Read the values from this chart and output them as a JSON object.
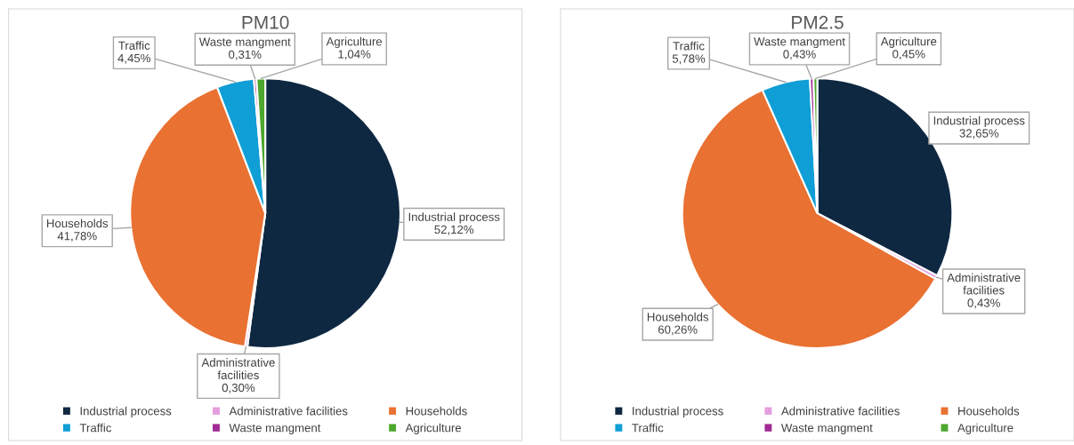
{
  "chart_data": [
    {
      "type": "pie",
      "title": "PM10",
      "categories": [
        "Industrial process",
        "Administrative facilities",
        "Households",
        "Traffic",
        "Waste mangment",
        "Agriculture"
      ],
      "values": [
        52.12,
        0.3,
        41.78,
        4.45,
        0.31,
        1.04
      ],
      "value_labels": [
        "52,12%",
        "0,30%",
        "41,78%",
        "4,45%",
        "0,31%",
        "1,04%"
      ],
      "colors": [
        "#0e2841",
        "#e49edd",
        "#e97132",
        "#0f9ed5",
        "#a02b93",
        "#4ea72e"
      ],
      "legend": "bottom"
    },
    {
      "type": "pie",
      "title": "PM2.5",
      "categories": [
        "Industrial process",
        "Administrative facilities",
        "Households",
        "Traffic",
        "Waste mangment",
        "Agriculture"
      ],
      "values": [
        32.65,
        0.43,
        60.26,
        5.78,
        0.43,
        0.45
      ],
      "value_labels": [
        "32,65%",
        "0,43%",
        "60,26%",
        "5,78%",
        "0,43%",
        "0,45%"
      ],
      "colors": [
        "#0e2841",
        "#e49edd",
        "#e97132",
        "#0f9ed5",
        "#a02b93",
        "#4ea72e"
      ],
      "legend": "bottom"
    }
  ]
}
